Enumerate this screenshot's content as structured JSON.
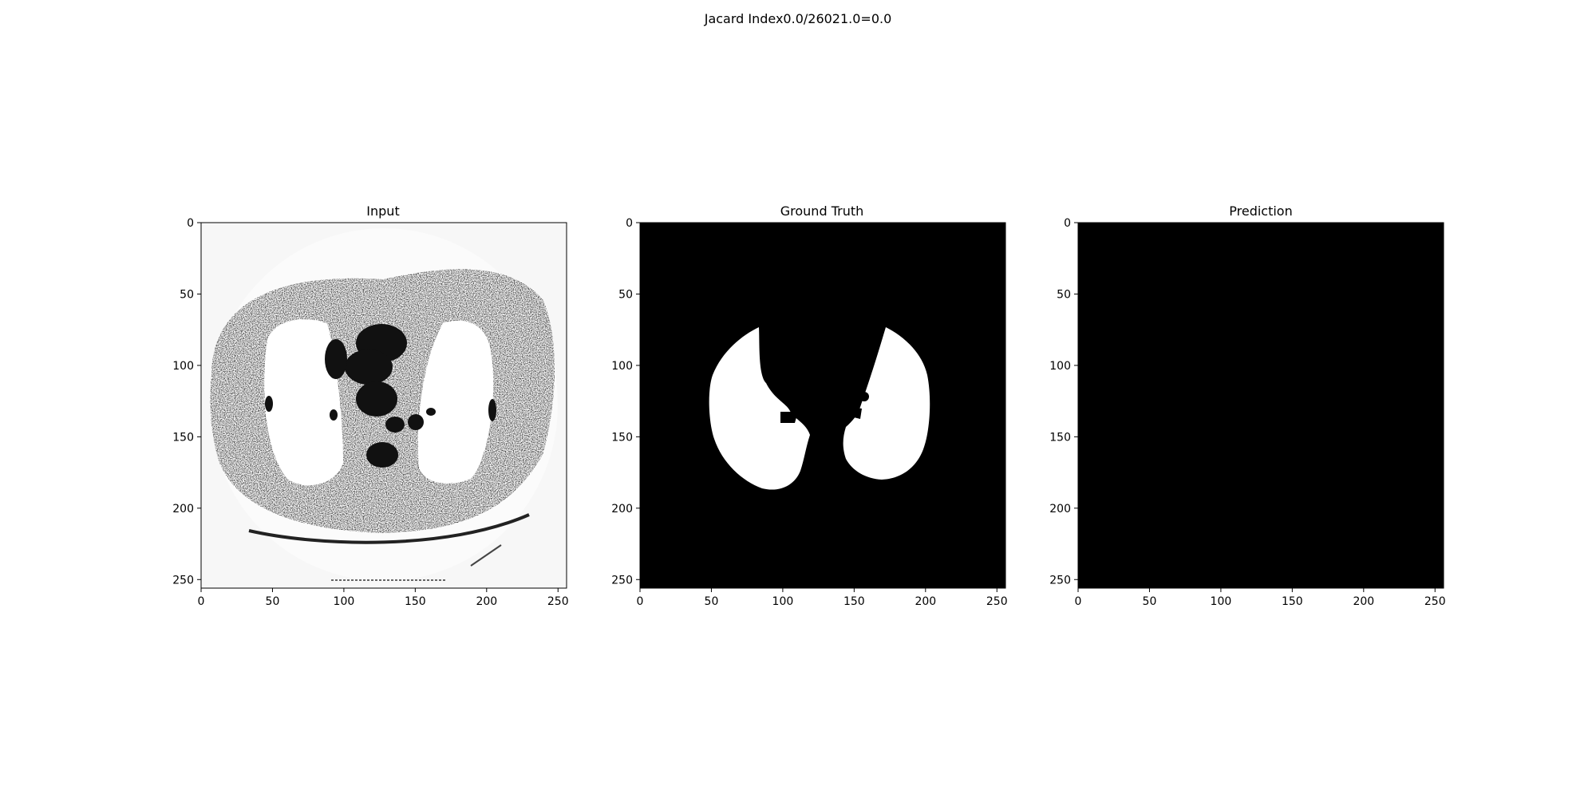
{
  "figure": {
    "suptitle": "Jacard Index0.0/26021.0=0.0"
  },
  "chart_data": [
    {
      "type": "heatmap",
      "title": "Input",
      "xlabel": "",
      "ylabel": "",
      "xlim": [
        0,
        256
      ],
      "ylim": [
        256,
        0
      ],
      "xticks": [
        0,
        50,
        100,
        150,
        200,
        250
      ],
      "yticks": [
        0,
        50,
        100,
        150,
        200,
        250
      ],
      "colormap": "gray",
      "content": "axial chest CT slice (binarized grayscale)",
      "grid": false
    },
    {
      "type": "heatmap",
      "title": "Ground Truth",
      "xlabel": "",
      "ylabel": "",
      "xlim": [
        0,
        256
      ],
      "ylim": [
        256,
        0
      ],
      "xticks": [
        0,
        50,
        100,
        150,
        200,
        250
      ],
      "yticks": [
        0,
        50,
        100,
        150,
        200,
        250
      ],
      "colormap": "gray",
      "content": "binary lung segmentation mask (white = lungs)",
      "grid": false
    },
    {
      "type": "heatmap",
      "title": "Prediction",
      "xlabel": "",
      "ylabel": "",
      "xlim": [
        0,
        256
      ],
      "ylim": [
        256,
        0
      ],
      "xticks": [
        0,
        50,
        100,
        150,
        200,
        250
      ],
      "yticks": [
        0,
        50,
        100,
        150,
        200,
        250
      ],
      "colormap": "gray",
      "content": "all zeros (empty prediction mask)",
      "grid": false
    }
  ],
  "colors": {
    "background": "#ffffff",
    "mask_on": "#ffffff",
    "mask_off": "#000000",
    "ct_light": "#f7f7f7"
  }
}
